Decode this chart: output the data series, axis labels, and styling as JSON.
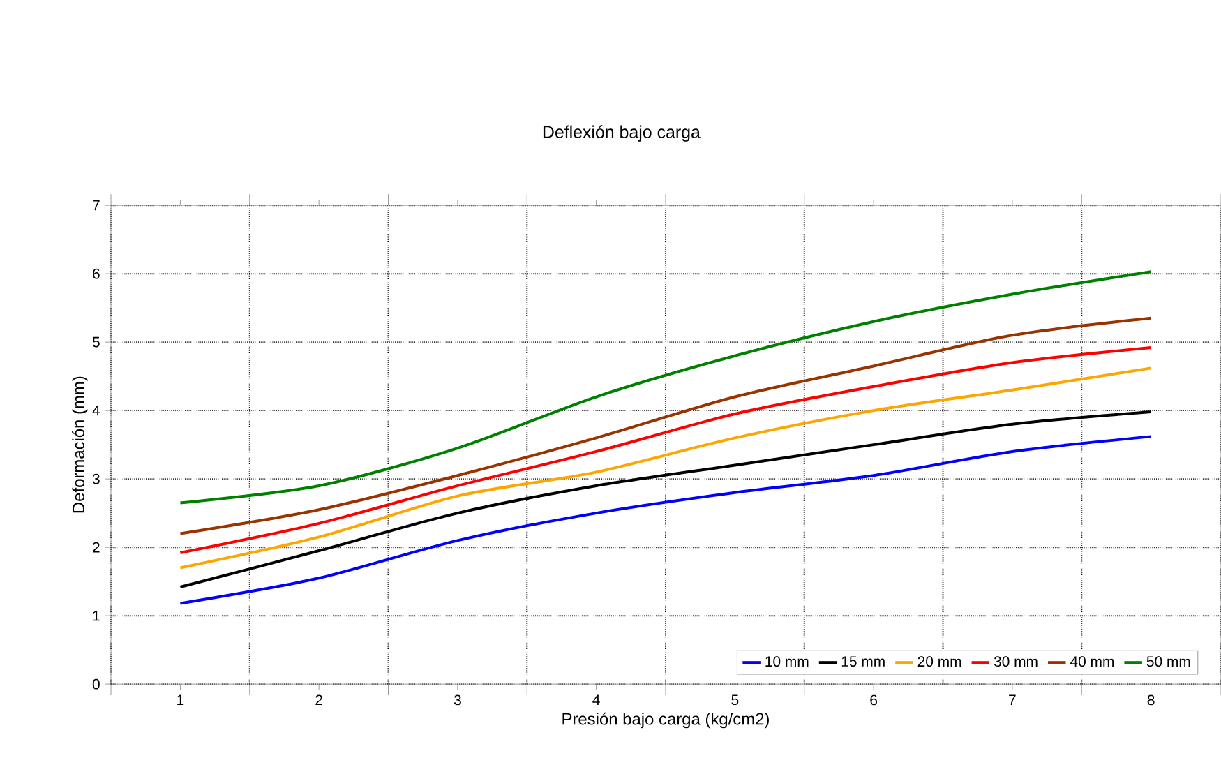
{
  "chart_data": {
    "type": "line",
    "title": "Deflexión bajo carga",
    "xlabel": "Presión bajo carga (kg/cm2)",
    "ylabel": "Deformación (mm)",
    "categories": [
      "1",
      "2",
      "3",
      "4",
      "5",
      "6",
      "7",
      "8"
    ],
    "series": [
      {
        "name": "10 mm",
        "color": "#0000ff",
        "values": [
          1.18,
          1.55,
          2.1,
          2.5,
          2.8,
          3.05,
          3.4,
          3.62
        ]
      },
      {
        "name": "15 mm",
        "color": "#000000",
        "values": [
          1.42,
          1.95,
          2.5,
          2.9,
          3.2,
          3.5,
          3.8,
          3.98
        ]
      },
      {
        "name": "20 mm",
        "color": "#ffa500",
        "values": [
          1.7,
          2.15,
          2.75,
          3.1,
          3.6,
          4.0,
          4.3,
          4.62
        ]
      },
      {
        "name": "30 mm",
        "color": "#ff0000",
        "values": [
          1.92,
          2.35,
          2.9,
          3.4,
          3.95,
          4.35,
          4.7,
          4.92
        ]
      },
      {
        "name": "40 mm",
        "color": "#993300",
        "values": [
          2.2,
          2.55,
          3.05,
          3.6,
          4.2,
          4.65,
          5.1,
          5.35
        ]
      },
      {
        "name": "50 mm",
        "color": "#008000",
        "values": [
          2.65,
          2.9,
          3.45,
          4.2,
          4.8,
          5.3,
          5.7,
          6.03
        ]
      }
    ],
    "ylim": [
      0,
      7
    ],
    "yticks": [
      0,
      1,
      2,
      3,
      4,
      5,
      6,
      7
    ],
    "grid": true,
    "legend": "bottom right",
    "marker": "none",
    "line_style": "solid"
  }
}
